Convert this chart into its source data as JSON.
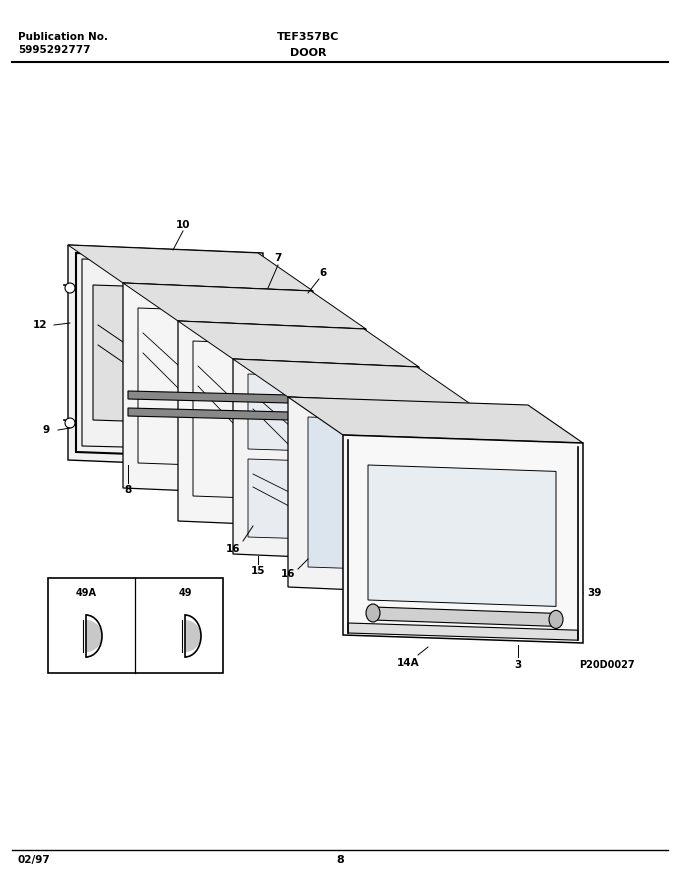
{
  "title_left_line1": "Publication No.",
  "title_left_line2": "5995292777",
  "title_center": "TEF357BC",
  "subtitle_center": "DOOR",
  "footer_left": "02/97",
  "footer_center": "8",
  "image_code": "P20D0027",
  "bg_color": "#ffffff",
  "text_color": "#000000",
  "fig_width": 6.8,
  "fig_height": 8.82,
  "dpi": 100
}
